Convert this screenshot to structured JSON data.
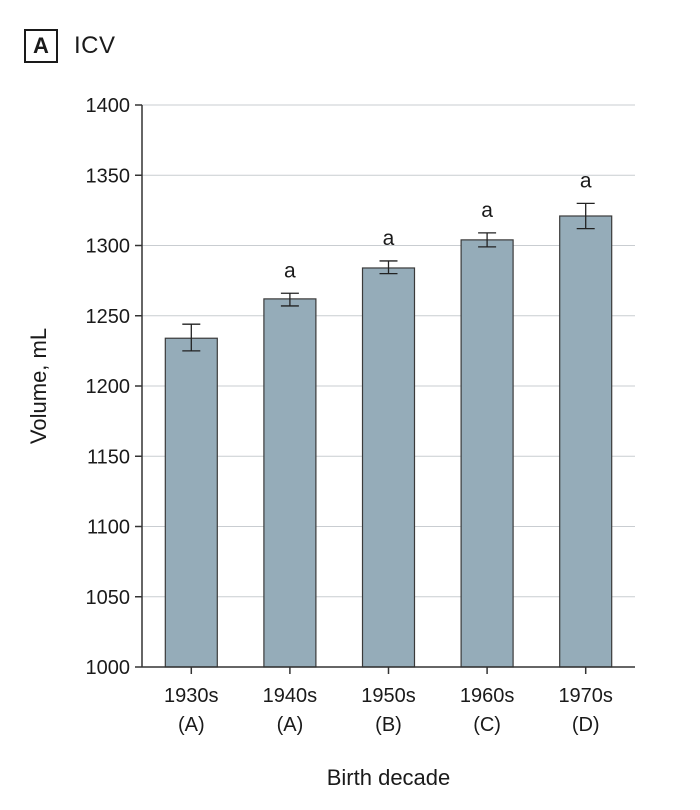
{
  "panel": {
    "letter": "A",
    "title": "ICV"
  },
  "chart_data": {
    "type": "bar",
    "categories": [
      "1930s",
      "1940s",
      "1950s",
      "1960s",
      "1970s"
    ],
    "category_groups": [
      "(A)",
      "(A)",
      "(B)",
      "(C)",
      "(D)"
    ],
    "values": [
      1234,
      1262,
      1284,
      1304,
      1321
    ],
    "error_low": [
      1225,
      1257,
      1280,
      1299,
      1312
    ],
    "error_high": [
      1244,
      1266,
      1289,
      1309,
      1330
    ],
    "annotations": [
      "",
      "a",
      "a",
      "a",
      "a"
    ],
    "title": "ICV",
    "xlabel": "Birth decade",
    "ylabel": "Volume, mL",
    "ylim": [
      1000,
      1400
    ],
    "yticks": [
      1000,
      1050,
      1100,
      1150,
      1200,
      1250,
      1300,
      1350,
      1400
    ],
    "grid": true,
    "colors": {
      "bar": "#95acb9",
      "bar_edge": "#3a3a3a",
      "grid": "#c9cdd1",
      "axis": "#333333"
    }
  }
}
